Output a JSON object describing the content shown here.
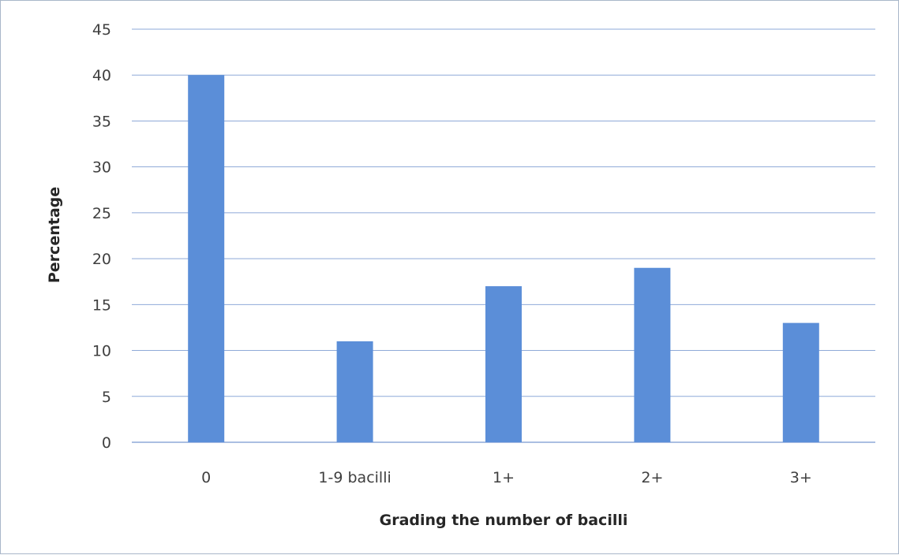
{
  "chart_data": {
    "type": "bar",
    "categories": [
      "0",
      "1-9 bacilli",
      "1+",
      "2+",
      "3+"
    ],
    "values": [
      40,
      11,
      17,
      19,
      13
    ],
    "title": "",
    "xlabel": "Grading the number of bacilli",
    "ylabel": "Percentage",
    "ylim": [
      0,
      45
    ],
    "yticks": [
      0,
      5,
      10,
      15,
      20,
      25,
      30,
      35,
      40,
      45
    ],
    "grid": true,
    "legend": "none",
    "bar_color": "#5b8ed8",
    "grid_color": "#8ea9d8"
  }
}
